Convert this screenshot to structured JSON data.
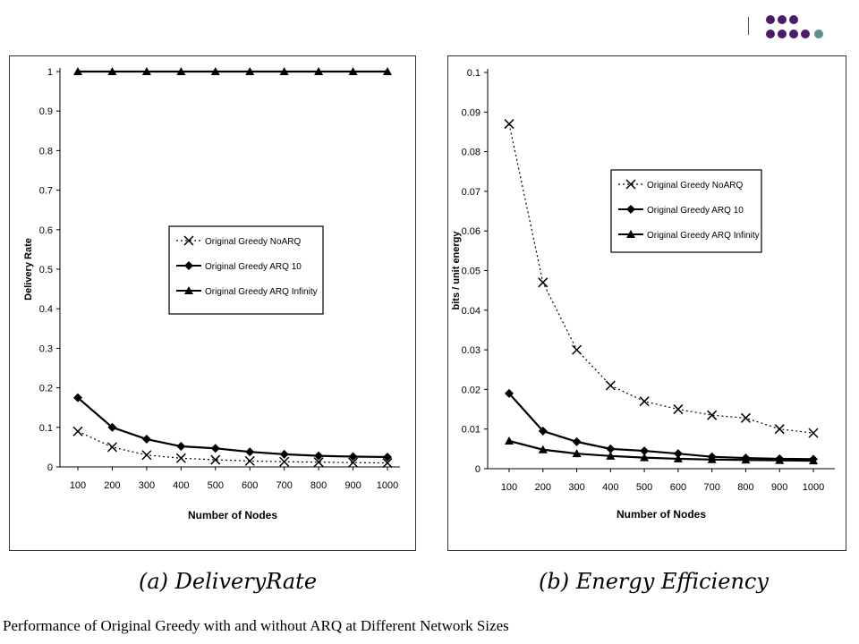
{
  "colors": {
    "dot_purple": "#4b1c6b",
    "dot_teal": "#5c8e8e",
    "series_line": "#000000"
  },
  "captions": {
    "a": "(a) DeliveryRate",
    "b": "(b) Energy Efficiency",
    "figure": "Performance of Original Greedy with and without ARQ at Different Network Sizes"
  },
  "chart_data": [
    {
      "type": "line",
      "xlabel": "Number of Nodes",
      "ylabel": "Delivery Rate",
      "x": [
        100,
        200,
        300,
        400,
        500,
        600,
        700,
        800,
        900,
        1000
      ],
      "xlim": [
        100,
        1000
      ],
      "ylim": [
        0,
        1
      ],
      "yticks": [
        "0",
        "0.1",
        "0.2",
        "0.3",
        "0.4",
        "0.5",
        "0.6",
        "0.7",
        "0.8",
        "0.9",
        "1"
      ],
      "grid": false,
      "legend": "center-right",
      "series": [
        {
          "name": "Original Greedy NoARQ",
          "marker": "x",
          "dash": "dotted",
          "values": [
            0.09,
            0.05,
            0.03,
            0.022,
            0.018,
            0.015,
            0.013,
            0.012,
            0.011,
            0.01
          ]
        },
        {
          "name": "Original Greedy ARQ 10",
          "marker": "diamond",
          "dash": "solid",
          "values": [
            0.175,
            0.1,
            0.07,
            0.052,
            0.047,
            0.038,
            0.032,
            0.028,
            0.026,
            0.025
          ]
        },
        {
          "name": "Original Greedy ARQ Infinity",
          "marker": "triangle",
          "dash": "solid",
          "values": [
            1,
            1,
            1,
            1,
            1,
            1,
            1,
            1,
            1,
            1
          ]
        }
      ]
    },
    {
      "type": "line",
      "xlabel": "Number of Nodes",
      "ylabel": "bits / unit energy",
      "x": [
        100,
        200,
        300,
        400,
        500,
        600,
        700,
        800,
        900,
        1000
      ],
      "xlim": [
        100,
        1000
      ],
      "ylim": [
        0,
        0.1
      ],
      "yticks": [
        "0",
        "0.01",
        "0.02",
        "0.03",
        "0.04",
        "0.05",
        "0.06",
        "0.07",
        "0.08",
        "0.09",
        "0.1"
      ],
      "grid": false,
      "legend": "top-right",
      "series": [
        {
          "name": "Original Greedy NoARQ",
          "marker": "x",
          "dash": "dotted",
          "values": [
            0.087,
            0.047,
            0.03,
            0.021,
            0.017,
            0.015,
            0.0135,
            0.0128,
            0.01,
            0.009
          ]
        },
        {
          "name": "Original Greedy ARQ 10",
          "marker": "diamond",
          "dash": "solid",
          "values": [
            0.019,
            0.0095,
            0.0068,
            0.005,
            0.0045,
            0.0038,
            0.003,
            0.0027,
            0.0025,
            0.0024
          ]
        },
        {
          "name": "Original Greedy ARQ Infinity",
          "marker": "triangle",
          "dash": "solid",
          "values": [
            0.007,
            0.0048,
            0.0038,
            0.0032,
            0.0028,
            0.0025,
            0.0023,
            0.0022,
            0.0021,
            0.002
          ]
        }
      ]
    }
  ]
}
